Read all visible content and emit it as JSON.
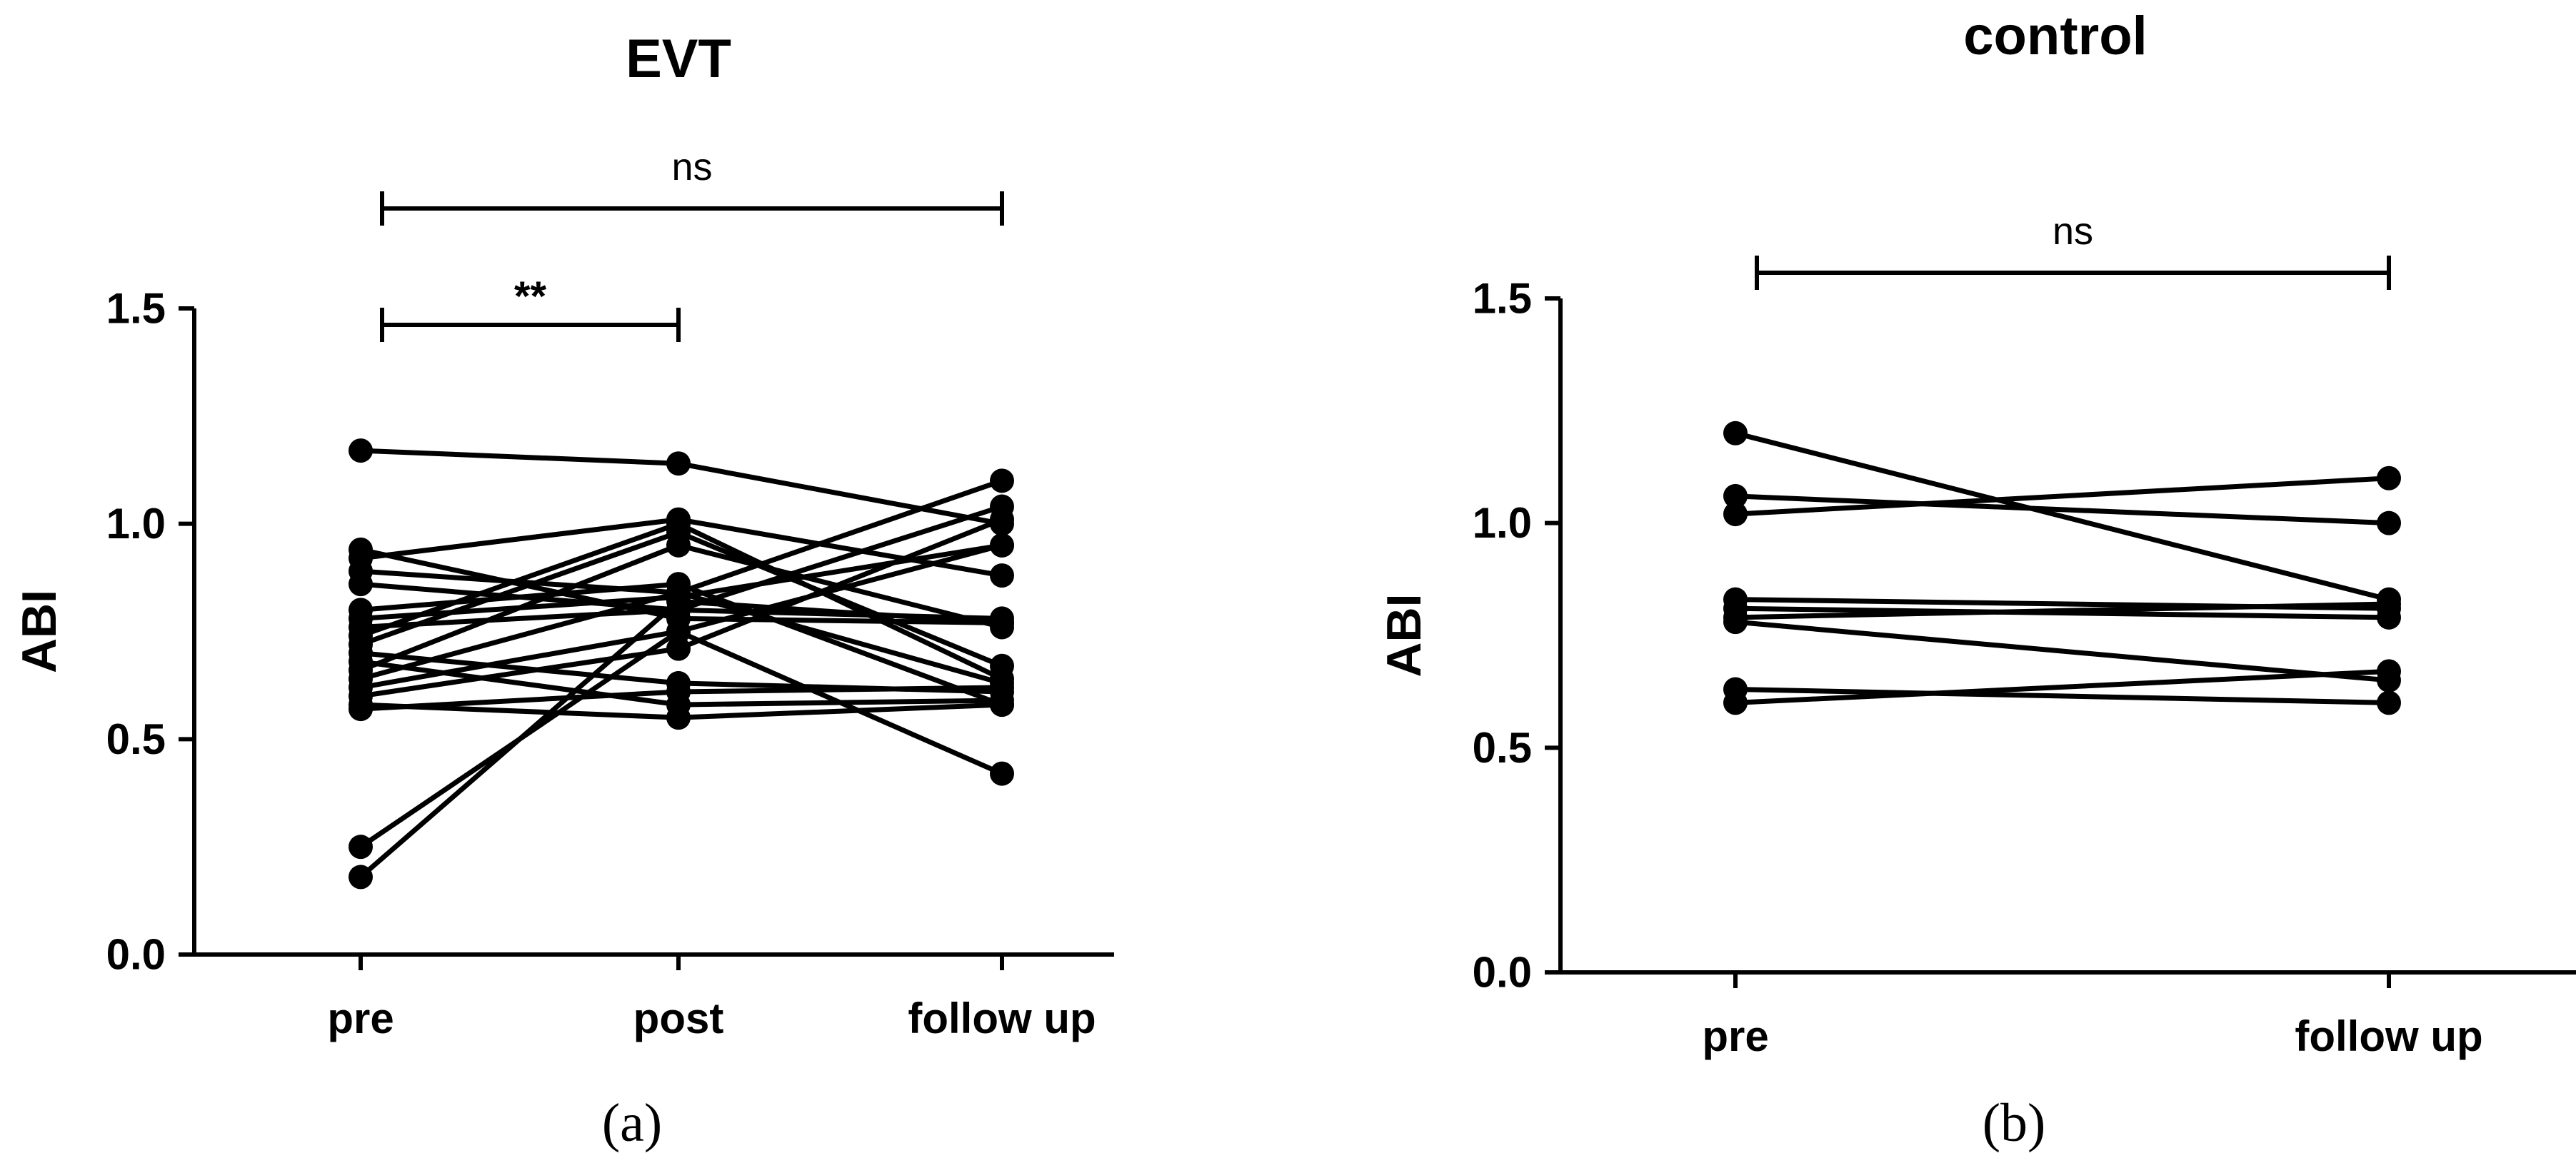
{
  "chart_data": [
    {
      "panel": "(a)",
      "type": "line",
      "title": "EVT",
      "xlabel": "",
      "ylabel": "ABI",
      "categories": [
        "pre",
        "post",
        "follow up"
      ],
      "yticks": [
        "0.0",
        "0.5",
        "1.0",
        "1.5"
      ],
      "ylim": [
        0,
        1.5
      ],
      "grid": false,
      "series": [
        {
          "values": [
            1.17,
            1.14,
            1.0
          ]
        },
        {
          "values": [
            0.94,
            0.78,
            0.77
          ]
        },
        {
          "values": [
            0.92,
            1.01,
            0.88
          ]
        },
        {
          "values": [
            0.89,
            0.84,
            0.63
          ]
        },
        {
          "values": [
            0.86,
            0.8,
            1.04
          ]
        },
        {
          "values": [
            0.8,
            0.86,
            0.58
          ]
        },
        {
          "values": [
            0.78,
            0.83,
            0.95
          ]
        },
        {
          "values": [
            0.76,
            0.8,
            0.78
          ]
        },
        {
          "values": [
            0.74,
            1.0,
            0.64
          ]
        },
        {
          "values": [
            0.72,
            0.98,
            0.67
          ]
        },
        {
          "values": [
            0.7,
            0.63,
            0.61
          ]
        },
        {
          "values": [
            0.68,
            0.58,
            0.59
          ]
        },
        {
          "values": [
            0.66,
            0.95,
            0.76
          ]
        },
        {
          "values": [
            0.64,
            0.84,
            1.1
          ]
        },
        {
          "values": [
            0.62,
            0.75,
            0.42
          ]
        },
        {
          "values": [
            0.6,
            0.71,
            1.01
          ]
        },
        {
          "values": [
            0.58,
            0.55,
            0.58
          ]
        },
        {
          "values": [
            0.57,
            0.61,
            0.62
          ]
        },
        {
          "values": [
            0.25,
            0.75,
            0.95
          ]
        },
        {
          "values": [
            0.18,
            0.82,
            0.77
          ]
        }
      ],
      "annotations": [
        {
          "from": "pre",
          "to": "post",
          "text": "**"
        },
        {
          "from": "pre",
          "to": "follow up",
          "text": "ns"
        }
      ]
    },
    {
      "panel": "(b)",
      "type": "line",
      "title": "control",
      "xlabel": "",
      "ylabel": "ABI",
      "categories": [
        "pre",
        "follow up"
      ],
      "yticks": [
        "0.0",
        "0.5",
        "1.0",
        "1.5"
      ],
      "ylim": [
        0,
        1.5
      ],
      "grid": false,
      "series": [
        {
          "values": [
            1.2,
            0.83
          ]
        },
        {
          "values": [
            1.06,
            1.0
          ]
        },
        {
          "values": [
            1.02,
            1.1
          ]
        },
        {
          "values": [
            0.83,
            0.81
          ]
        },
        {
          "values": [
            0.81,
            0.79
          ]
        },
        {
          "values": [
            0.79,
            0.82
          ]
        },
        {
          "values": [
            0.78,
            0.65
          ]
        },
        {
          "values": [
            0.63,
            0.6
          ]
        },
        {
          "values": [
            0.6,
            0.67
          ]
        }
      ],
      "annotations": [
        {
          "from": "pre",
          "to": "follow up",
          "text": "ns"
        }
      ]
    }
  ],
  "style": {
    "line_color": "#000000",
    "marker_color": "#000000"
  }
}
